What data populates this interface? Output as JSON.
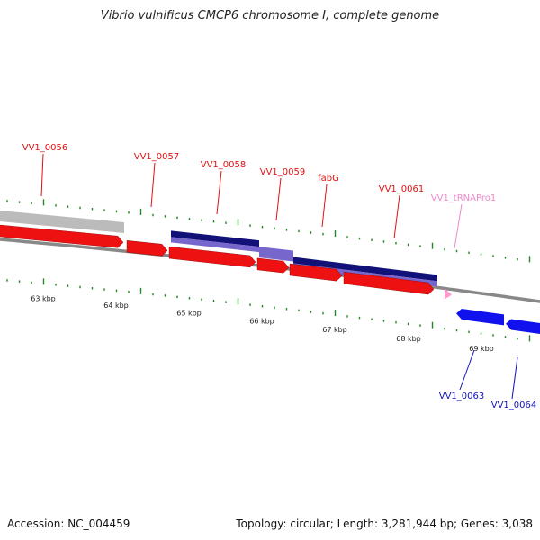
{
  "title": "Vibrio vulnificus CMCP6 chromosome I, complete genome",
  "footer": {
    "accession": "Accession: NC_004459",
    "summary": "Topology: circular; Length: 3,281,944 bp; Genes: 3,038"
  },
  "colors": {
    "forward_cds": "#ee1111",
    "reverse_cds": "#1111ee",
    "grey_feature": "#bbbbbb",
    "dark_blue_feature": "#111177",
    "light_blue_feature": "#7766cc",
    "trna": "#ff99cc",
    "tick": "#228822",
    "backbone": "#888888"
  },
  "scale_ticks": [
    "63 kbp",
    "64 kbp",
    "65 kbp",
    "66 kbp",
    "67 kbp",
    "68 kbp",
    "69 kbp"
  ],
  "gene_labels": [
    {
      "text": "VV1_0056",
      "color": "#dd1111"
    },
    {
      "text": "VV1_0057",
      "color": "#dd1111"
    },
    {
      "text": "VV1_0058",
      "color": "#dd1111"
    },
    {
      "text": "VV1_0059",
      "color": "#dd1111"
    },
    {
      "text": "fabG",
      "color": "#dd1111"
    },
    {
      "text": "VV1_0061",
      "color": "#dd1111"
    },
    {
      "text": "VV1_tRNAPro1",
      "color": "#ee88cc"
    },
    {
      "text": "VV1_0063",
      "color": "#1111bb"
    },
    {
      "text": "VV1_0064",
      "color": "#1111bb"
    }
  ]
}
